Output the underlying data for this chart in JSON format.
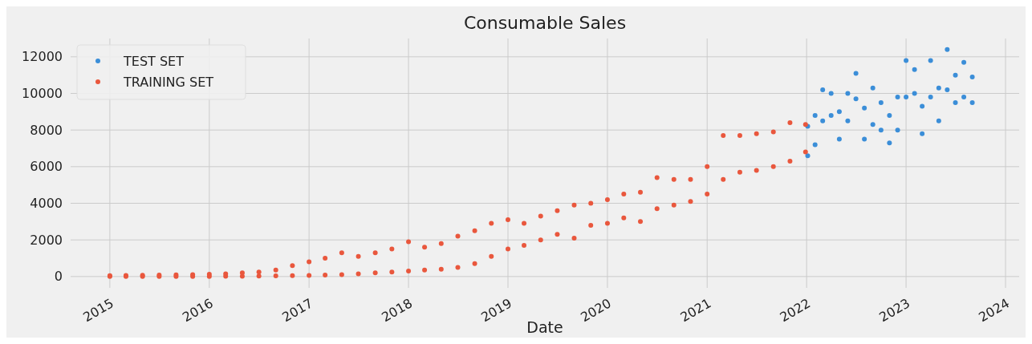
{
  "chart_data": {
    "type": "scatter",
    "title": "Consumable Sales",
    "xlabel": "Date",
    "xlim": [
      "2014-08-10",
      "2024-02-20"
    ],
    "ylim": [
      -620,
      13000
    ],
    "xticks": [
      "2015",
      "2016",
      "2017",
      "2018",
      "2019",
      "2020",
      "2021",
      "2022",
      "2023",
      "2024"
    ],
    "yticks": [
      0,
      2000,
      4000,
      6000,
      8000,
      10000,
      12000
    ],
    "grid": true,
    "legend": "top left",
    "marker": "circle",
    "series": [
      {
        "name": "TEST SET",
        "color": "#3b8ed8",
        "x": [
          "2022-01-05",
          "2022-01-05",
          "2022-02-01",
          "2022-02-01",
          "2022-03-01",
          "2022-03-01",
          "2022-04-01",
          "2022-04-01",
          "2022-05-01",
          "2022-05-01",
          "2022-06-01",
          "2022-06-01",
          "2022-07-01",
          "2022-07-01",
          "2022-08-01",
          "2022-08-01",
          "2022-09-01",
          "2022-09-01",
          "2022-10-01",
          "2022-10-01",
          "2022-11-01",
          "2022-11-01",
          "2022-12-01",
          "2022-12-01",
          "2023-01-01",
          "2023-01-01",
          "2023-02-01",
          "2023-02-01",
          "2023-03-01",
          "2023-03-01",
          "2023-04-01",
          "2023-04-01",
          "2023-05-01",
          "2023-05-01",
          "2023-06-01",
          "2023-06-01",
          "2023-07-01",
          "2023-07-01",
          "2023-08-01",
          "2023-08-01",
          "2023-09-01",
          "2023-09-01"
        ],
        "values": [
          6600,
          8200,
          7200,
          8800,
          8500,
          10200,
          8800,
          10000,
          7500,
          9000,
          8500,
          10000,
          9700,
          11100,
          7500,
          9200,
          8300,
          10300,
          8000,
          9500,
          7300,
          8800,
          8000,
          9800,
          9800,
          11800,
          10000,
          11300,
          7800,
          9300,
          9800,
          11800,
          8500,
          10300,
          10200,
          12400,
          9500,
          11000,
          9800,
          11700,
          9500,
          10900
        ]
      },
      {
        "name": "TRAINING SET",
        "color": "#e9573d",
        "x": [
          "2015-01-01",
          "2015-01-01",
          "2015-03-01",
          "2015-03-01",
          "2015-05-01",
          "2015-05-01",
          "2015-07-01",
          "2015-07-01",
          "2015-09-01",
          "2015-09-01",
          "2015-11-01",
          "2015-11-01",
          "2016-01-01",
          "2016-01-01",
          "2016-03-01",
          "2016-03-01",
          "2016-05-01",
          "2016-05-01",
          "2016-07-01",
          "2016-07-01",
          "2016-09-01",
          "2016-09-01",
          "2016-11-01",
          "2016-11-01",
          "2017-01-01",
          "2017-01-01",
          "2017-03-01",
          "2017-03-01",
          "2017-05-01",
          "2017-05-01",
          "2017-07-01",
          "2017-07-01",
          "2017-09-01",
          "2017-09-01",
          "2017-11-01",
          "2017-11-01",
          "2018-01-01",
          "2018-01-01",
          "2018-03-01",
          "2018-03-01",
          "2018-05-01",
          "2018-05-01",
          "2018-07-01",
          "2018-07-01",
          "2018-09-01",
          "2018-09-01",
          "2018-11-01",
          "2018-11-01",
          "2019-01-01",
          "2019-01-01",
          "2019-03-01",
          "2019-03-01",
          "2019-05-01",
          "2019-05-01",
          "2019-07-01",
          "2019-07-01",
          "2019-09-01",
          "2019-09-01",
          "2019-11-01",
          "2019-11-01",
          "2020-01-01",
          "2020-01-01",
          "2020-03-01",
          "2020-03-01",
          "2020-05-01",
          "2020-05-01",
          "2020-07-01",
          "2020-07-01",
          "2020-09-01",
          "2020-09-01",
          "2020-11-01",
          "2020-11-01",
          "2021-01-01",
          "2021-01-01",
          "2021-03-01",
          "2021-03-01",
          "2021-05-01",
          "2021-05-01",
          "2021-07-01",
          "2021-07-01",
          "2021-09-01",
          "2021-09-01",
          "2021-11-01",
          "2021-11-01",
          "2021-12-28",
          "2021-12-28"
        ],
        "values": [
          0,
          50,
          0,
          60,
          0,
          70,
          0,
          80,
          0,
          90,
          0,
          100,
          0,
          120,
          10,
          150,
          20,
          200,
          30,
          250,
          40,
          350,
          50,
          600,
          60,
          800,
          80,
          1000,
          100,
          1300,
          150,
          1100,
          200,
          1300,
          250,
          1500,
          300,
          1900,
          350,
          1600,
          400,
          1800,
          500,
          2200,
          700,
          2500,
          1100,
          2900,
          1500,
          3100,
          1700,
          2900,
          2000,
          3300,
          2300,
          3600,
          2100,
          3900,
          2800,
          4000,
          2900,
          4200,
          3200,
          4500,
          3000,
          4600,
          3700,
          5400,
          3900,
          5300,
          4100,
          5300,
          4500,
          6000,
          5300,
          7700,
          5700,
          7700,
          5800,
          7800,
          6000,
          7900,
          6300,
          8400,
          6800,
          8300
        ]
      }
    ]
  }
}
